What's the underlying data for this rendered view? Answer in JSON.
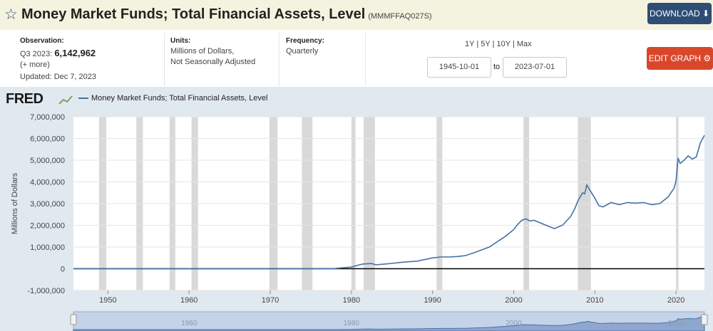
{
  "header": {
    "title": "Money Market Funds; Total Financial Assets, Level",
    "series_id": "(MMMFFAQ027S)",
    "download_label": "DOWNLOAD",
    "background": "#f3f3df",
    "download_color": "#2e4d75"
  },
  "meta": {
    "observation_label": "Observation:",
    "observation_period": "Q3 2023:",
    "observation_value": "6,142,962",
    "more_link": "(+ more)",
    "updated": "Updated: Dec 7, 2023",
    "units_label": "Units:",
    "units_line1": "Millions of Dollars,",
    "units_line2": "Not Seasonally Adjusted",
    "frequency_label": "Frequency:",
    "frequency_value": "Quarterly"
  },
  "range_links": {
    "y1": "1Y",
    "y5": "5Y",
    "y10": "10Y",
    "max": "Max",
    "separator": "|"
  },
  "date_range": {
    "start": "1945-10-01",
    "to": "to",
    "end": "2023-07-01"
  },
  "edit_graph_label": "EDIT GRAPH",
  "edit_color": "#d9472b",
  "logo": "FRED",
  "legend_label": "Money Market Funds; Total Financial Assets, Level",
  "chart_data": {
    "type": "line",
    "title": "",
    "ylabel": "Millions of Dollars",
    "xlabel": "",
    "ylim": [
      -1000000,
      7000000
    ],
    "xlim": [
      1945.75,
      2023.5
    ],
    "x_ticks": [
      "1950",
      "1960",
      "1970",
      "1980",
      "1990",
      "2000",
      "2010",
      "2020"
    ],
    "y_ticks": [
      "7,000,000",
      "6,000,000",
      "5,000,000",
      "4,000,000",
      "3,000,000",
      "2,000,000",
      "1,000,000",
      "0",
      "-1,000,000"
    ],
    "recessions": [
      [
        1948.9,
        1949.8
      ],
      [
        1953.5,
        1954.3
      ],
      [
        1957.6,
        1958.3
      ],
      [
        1960.3,
        1961.1
      ],
      [
        1969.9,
        1970.9
      ],
      [
        1973.9,
        1975.2
      ],
      [
        1980.0,
        1980.5
      ],
      [
        1981.5,
        1982.9
      ],
      [
        1990.5,
        1991.2
      ],
      [
        2001.2,
        2001.9
      ],
      [
        2007.9,
        2009.5
      ],
      [
        2020.0,
        2020.3
      ]
    ],
    "line_color": "#4572a7",
    "recession_color": "#d9d9d9",
    "series": [
      {
        "name": "Money Market Funds; Total Financial Assets, Level",
        "x": [
          1945.75,
          1970,
          1974,
          1976,
          1978,
          1979,
          1980,
          1981,
          1981.5,
          1982.5,
          1983,
          1984,
          1985,
          1986,
          1987,
          1988,
          1989,
          1990,
          1991,
          1992,
          1993,
          1994,
          1995,
          1996,
          1997,
          1998,
          1999,
          2000,
          2000.5,
          2001,
          2001.5,
          2002,
          2002.5,
          2003,
          2004,
          2005,
          2006,
          2007,
          2007.5,
          2008,
          2008.5,
          2008.75,
          2009,
          2009.5,
          2010,
          2010.5,
          2011,
          2012,
          2013,
          2014,
          2015,
          2016,
          2017,
          2018,
          2019,
          2019.75,
          2020,
          2020.25,
          2020.5,
          2021,
          2021.5,
          2022,
          2022.5,
          2023,
          2023.5
        ],
        "values": [
          0,
          0,
          2000,
          4000,
          10000,
          45000,
          75000,
          180000,
          220000,
          240000,
          180000,
          210000,
          245000,
          290000,
          320000,
          340000,
          420000,
          500000,
          540000,
          540000,
          560000,
          600000,
          720000,
          860000,
          1000000,
          1250000,
          1500000,
          1800000,
          2050000,
          2230000,
          2300000,
          2200000,
          2230000,
          2150000,
          2000000,
          1850000,
          2000000,
          2400000,
          2750000,
          3200000,
          3500000,
          3450000,
          3850000,
          3550000,
          3250000,
          2900000,
          2850000,
          3050000,
          2950000,
          3050000,
          3020000,
          3050000,
          2950000,
          3000000,
          3300000,
          3700000,
          4050000,
          5100000,
          4850000,
          5000000,
          5200000,
          5050000,
          5150000,
          5800000,
          6142962
        ]
      }
    ]
  }
}
